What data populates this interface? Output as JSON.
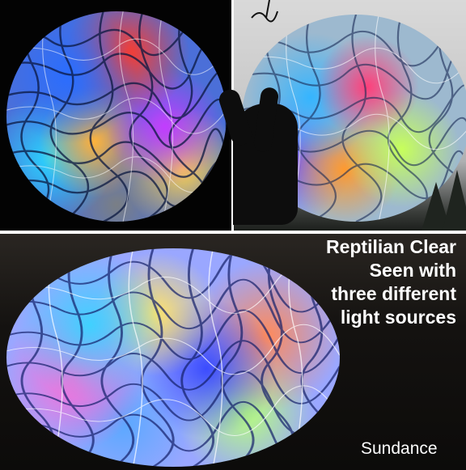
{
  "caption": {
    "line1": "Reptilian Clear",
    "line2": "Seen with",
    "line3": "three different",
    "line4": "light sources"
  },
  "credit": "Sundance"
}
